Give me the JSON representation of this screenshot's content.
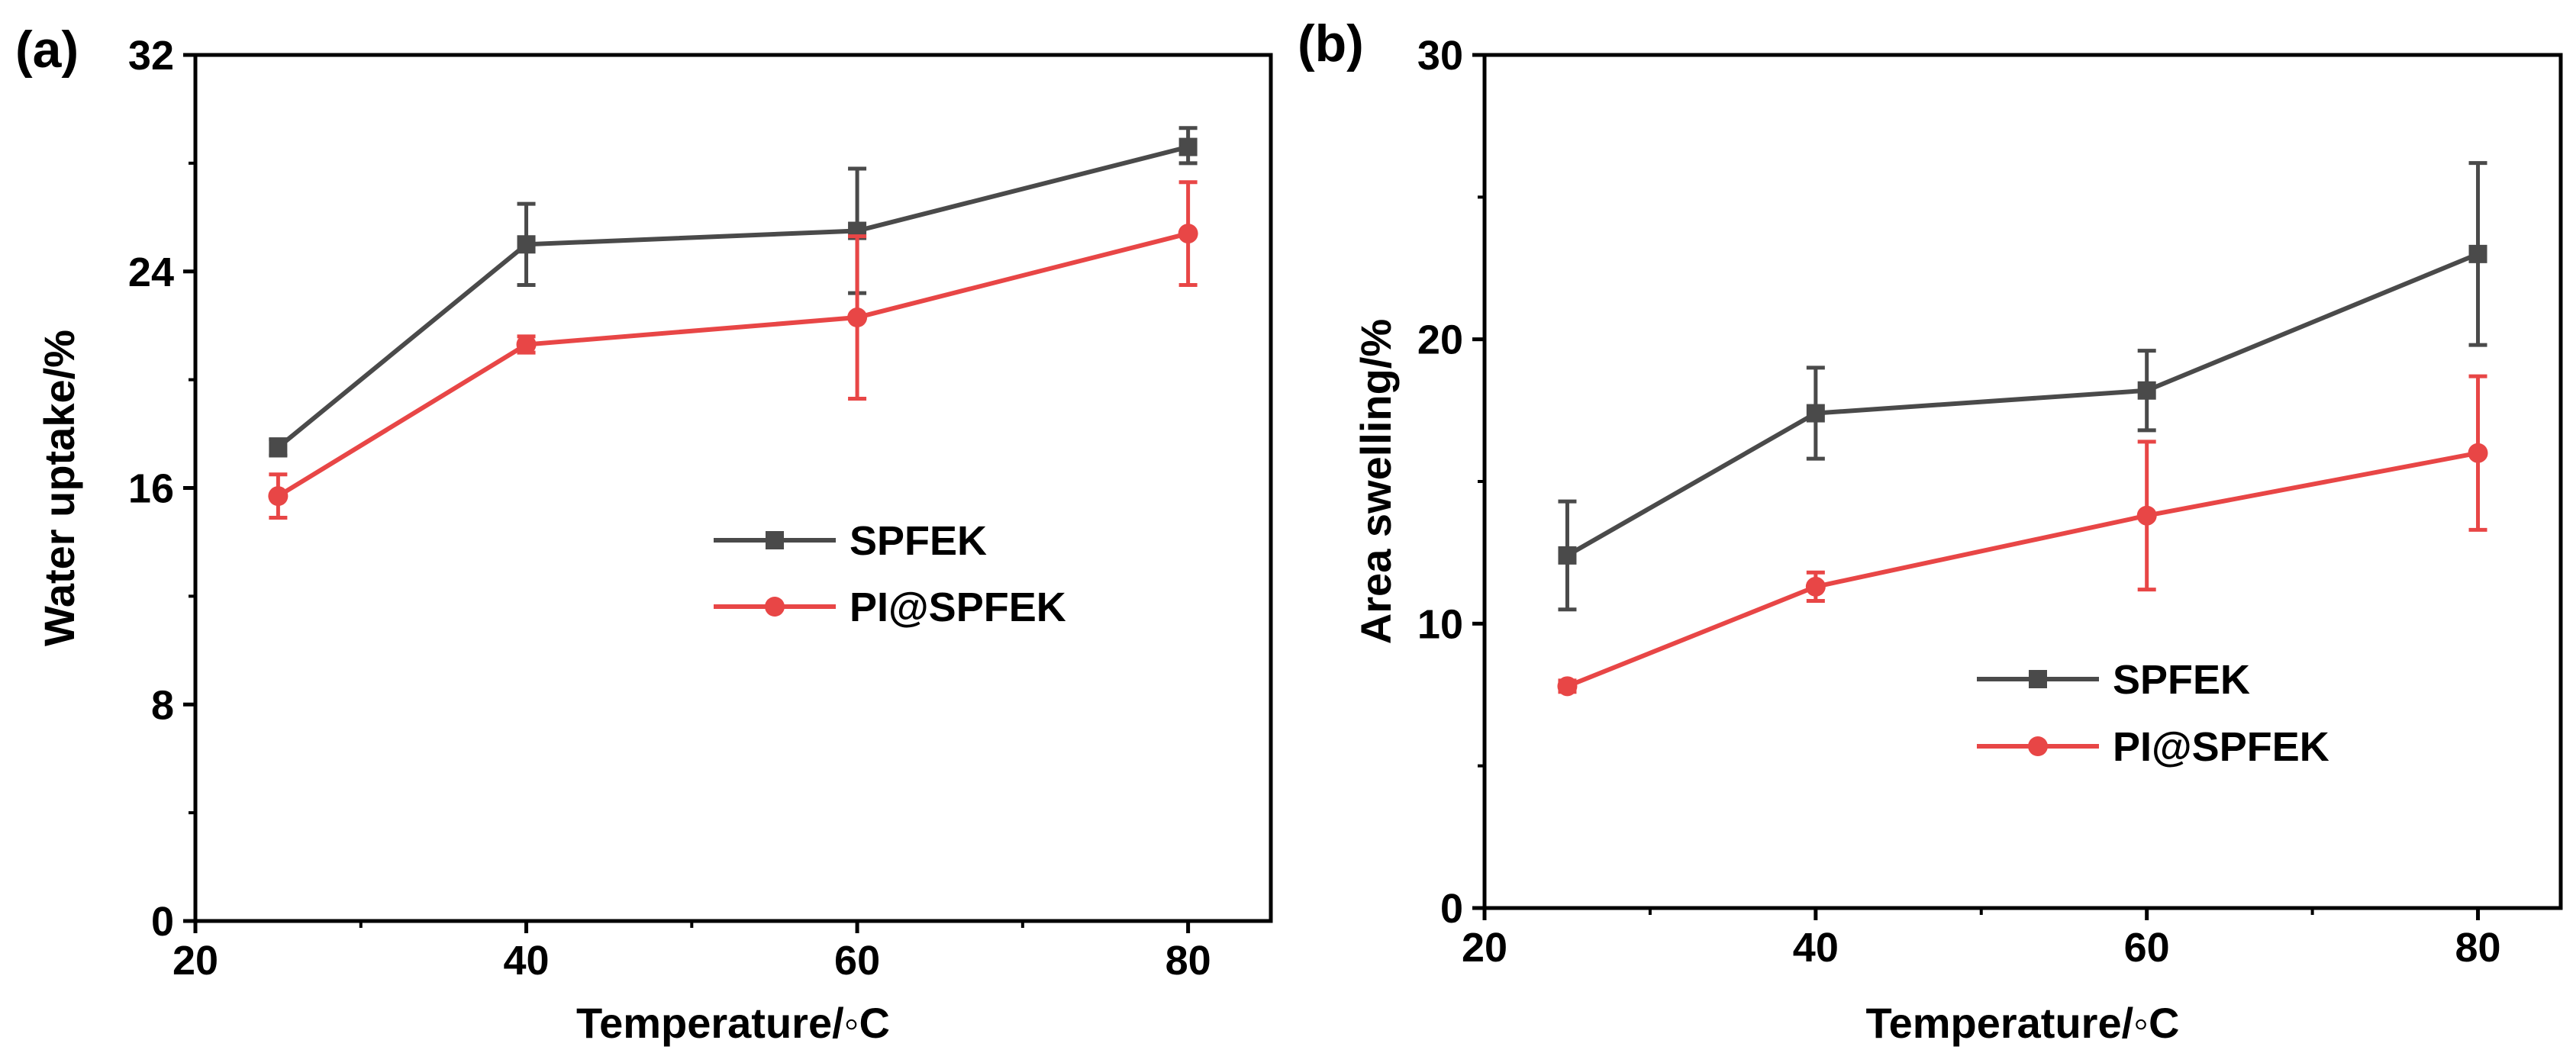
{
  "chart_data": [
    {
      "panel": "(a)",
      "type": "line",
      "xlabel": "Temperature/◦C",
      "ylabel": "Water uptake/%",
      "xlim": [
        20,
        85
      ],
      "ylim": [
        0,
        32
      ],
      "xticks": [
        20,
        40,
        60,
        80
      ],
      "yticks": [
        0,
        8,
        16,
        24,
        32
      ],
      "legend_position": "center-right",
      "series": [
        {
          "name": "SPFEK",
          "color": "#4a4a4a",
          "marker": "square",
          "x": [
            25,
            40,
            60,
            80
          ],
          "y": [
            17.5,
            25.0,
            25.5,
            28.6
          ],
          "yerr_low": [
            0.3,
            1.5,
            2.3,
            0.6
          ],
          "yerr_high": [
            0.3,
            1.5,
            2.3,
            0.7
          ]
        },
        {
          "name": "PI@SPFEK",
          "color": "#e84646",
          "marker": "circle",
          "x": [
            25,
            40,
            60,
            80
          ],
          "y": [
            15.7,
            21.3,
            22.3,
            25.4
          ],
          "yerr_low": [
            0.8,
            0.3,
            3.0,
            1.9
          ],
          "yerr_high": [
            0.8,
            0.3,
            3.0,
            1.9
          ]
        }
      ]
    },
    {
      "panel": "(b)",
      "type": "line",
      "xlabel": "Temperature/◦C",
      "ylabel": "Area swelling/%",
      "xlim": [
        20,
        85
      ],
      "ylim": [
        0,
        30
      ],
      "xticks": [
        20,
        40,
        60,
        80
      ],
      "yticks": [
        0,
        10,
        20,
        30
      ],
      "legend_position": "bottom-right",
      "series": [
        {
          "name": "SPFEK",
          "color": "#4a4a4a",
          "marker": "square",
          "x": [
            25,
            40,
            60,
            80
          ],
          "y": [
            12.4,
            17.4,
            18.2,
            23.0
          ],
          "yerr_low": [
            1.9,
            1.6,
            1.4,
            3.2
          ],
          "yerr_high": [
            1.9,
            1.6,
            1.4,
            3.2
          ]
        },
        {
          "name": "PI@SPFEK",
          "color": "#e84646",
          "marker": "circle",
          "x": [
            25,
            40,
            60,
            80
          ],
          "y": [
            7.8,
            11.3,
            13.8,
            16.0
          ],
          "yerr_low": [
            0.2,
            0.5,
            2.6,
            2.7
          ],
          "yerr_high": [
            0.2,
            0.5,
            2.6,
            2.7
          ]
        }
      ]
    }
  ]
}
